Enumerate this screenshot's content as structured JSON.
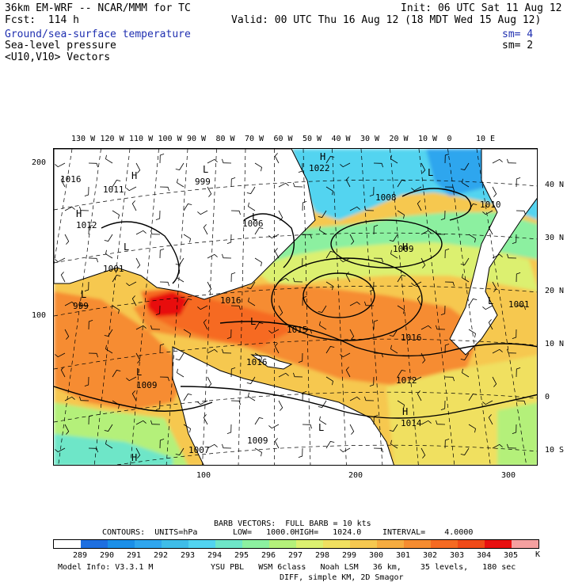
{
  "header": {
    "model": "36km EM-WRF -- NCAR/MMM for TC",
    "init": "Init: 06 UTC Sat 11 Aug 12",
    "fcst": "Fcst:  114 h",
    "valid": "Valid: 00 UTC Thu 16 Aug 12 (18 MDT Wed 15 Aug 12)",
    "fields": [
      {
        "label": "Ground/sea-surface temperature",
        "sm": "sm= 4",
        "color": "#1f2fb0"
      },
      {
        "label": "Sea-level pressure",
        "sm": "sm= 2",
        "color": "#000000"
      },
      {
        "label": "<U10,V10> Vectors",
        "sm": "",
        "color": "#000000"
      }
    ]
  },
  "map": {
    "top_lon_labels": [
      "130 W",
      "120 W",
      "110 W",
      "100 W",
      "90 W",
      "80 W",
      "70 W",
      "60 W",
      "50 W",
      "40 W",
      "30 W",
      "20 W",
      "10 W",
      "0",
      "10 E"
    ],
    "right_lat_labels": [
      "40 N",
      "30 N",
      "20 N",
      "10 N",
      "0",
      "10 S"
    ],
    "left_grid_labels": [
      "200",
      "100"
    ],
    "bottom_grid_labels": [
      "100",
      "200",
      "300"
    ],
    "pressure_labels": [
      "1016",
      "1011",
      "1012",
      "999",
      "1006",
      "1022",
      "1008",
      "1010",
      "1009",
      "1001",
      "1016",
      "1015",
      "1016",
      "1016",
      "1012",
      "1014",
      "1009",
      "1009",
      "999",
      "1007",
      "1001"
    ],
    "system_labels": [
      "H",
      "L",
      "H",
      "L",
      "L",
      "H",
      "L",
      "H",
      "L",
      "L",
      "L",
      "H",
      "L",
      "L",
      "H"
    ],
    "colors": {
      "land": "#ffffff",
      "coast": "#000000",
      "isobar": "#000000"
    }
  },
  "barbs_note": "BARB VECTORS:  FULL BARB = 10 kts",
  "contours": {
    "label": "CONTOURS:  UNITS=hPa",
    "low": "LOW=   1000.0",
    "high": "HIGH=   1024.0",
    "interval": "INTERVAL=    4.0000"
  },
  "colorbar": {
    "colors": [
      "#ffffff",
      "#1e6fe0",
      "#1b8fe8",
      "#2fa6ee",
      "#3fbde8",
      "#52d4f0",
      "#6ee6c8",
      "#8cf0a0",
      "#b4f07a",
      "#dcf070",
      "#f0e060",
      "#f6c850",
      "#f6ac40",
      "#f68c30",
      "#f66a22",
      "#f04a18",
      "#e81010",
      "#f5a0a0"
    ],
    "labels": [
      "289",
      "290",
      "291",
      "292",
      "293",
      "294",
      "295",
      "296",
      "297",
      "298",
      "299",
      "300",
      "301",
      "302",
      "303",
      "304",
      "305"
    ],
    "unit": "K"
  },
  "footer": {
    "line1_left": "Model Info: V3.3.1 M",
    "line1_right": "YSU PBL   WSM 6class   Noah LSM   36 km,    35 levels,   180 sec",
    "line2": "DIFF, simple KM, 2D Smagor"
  }
}
